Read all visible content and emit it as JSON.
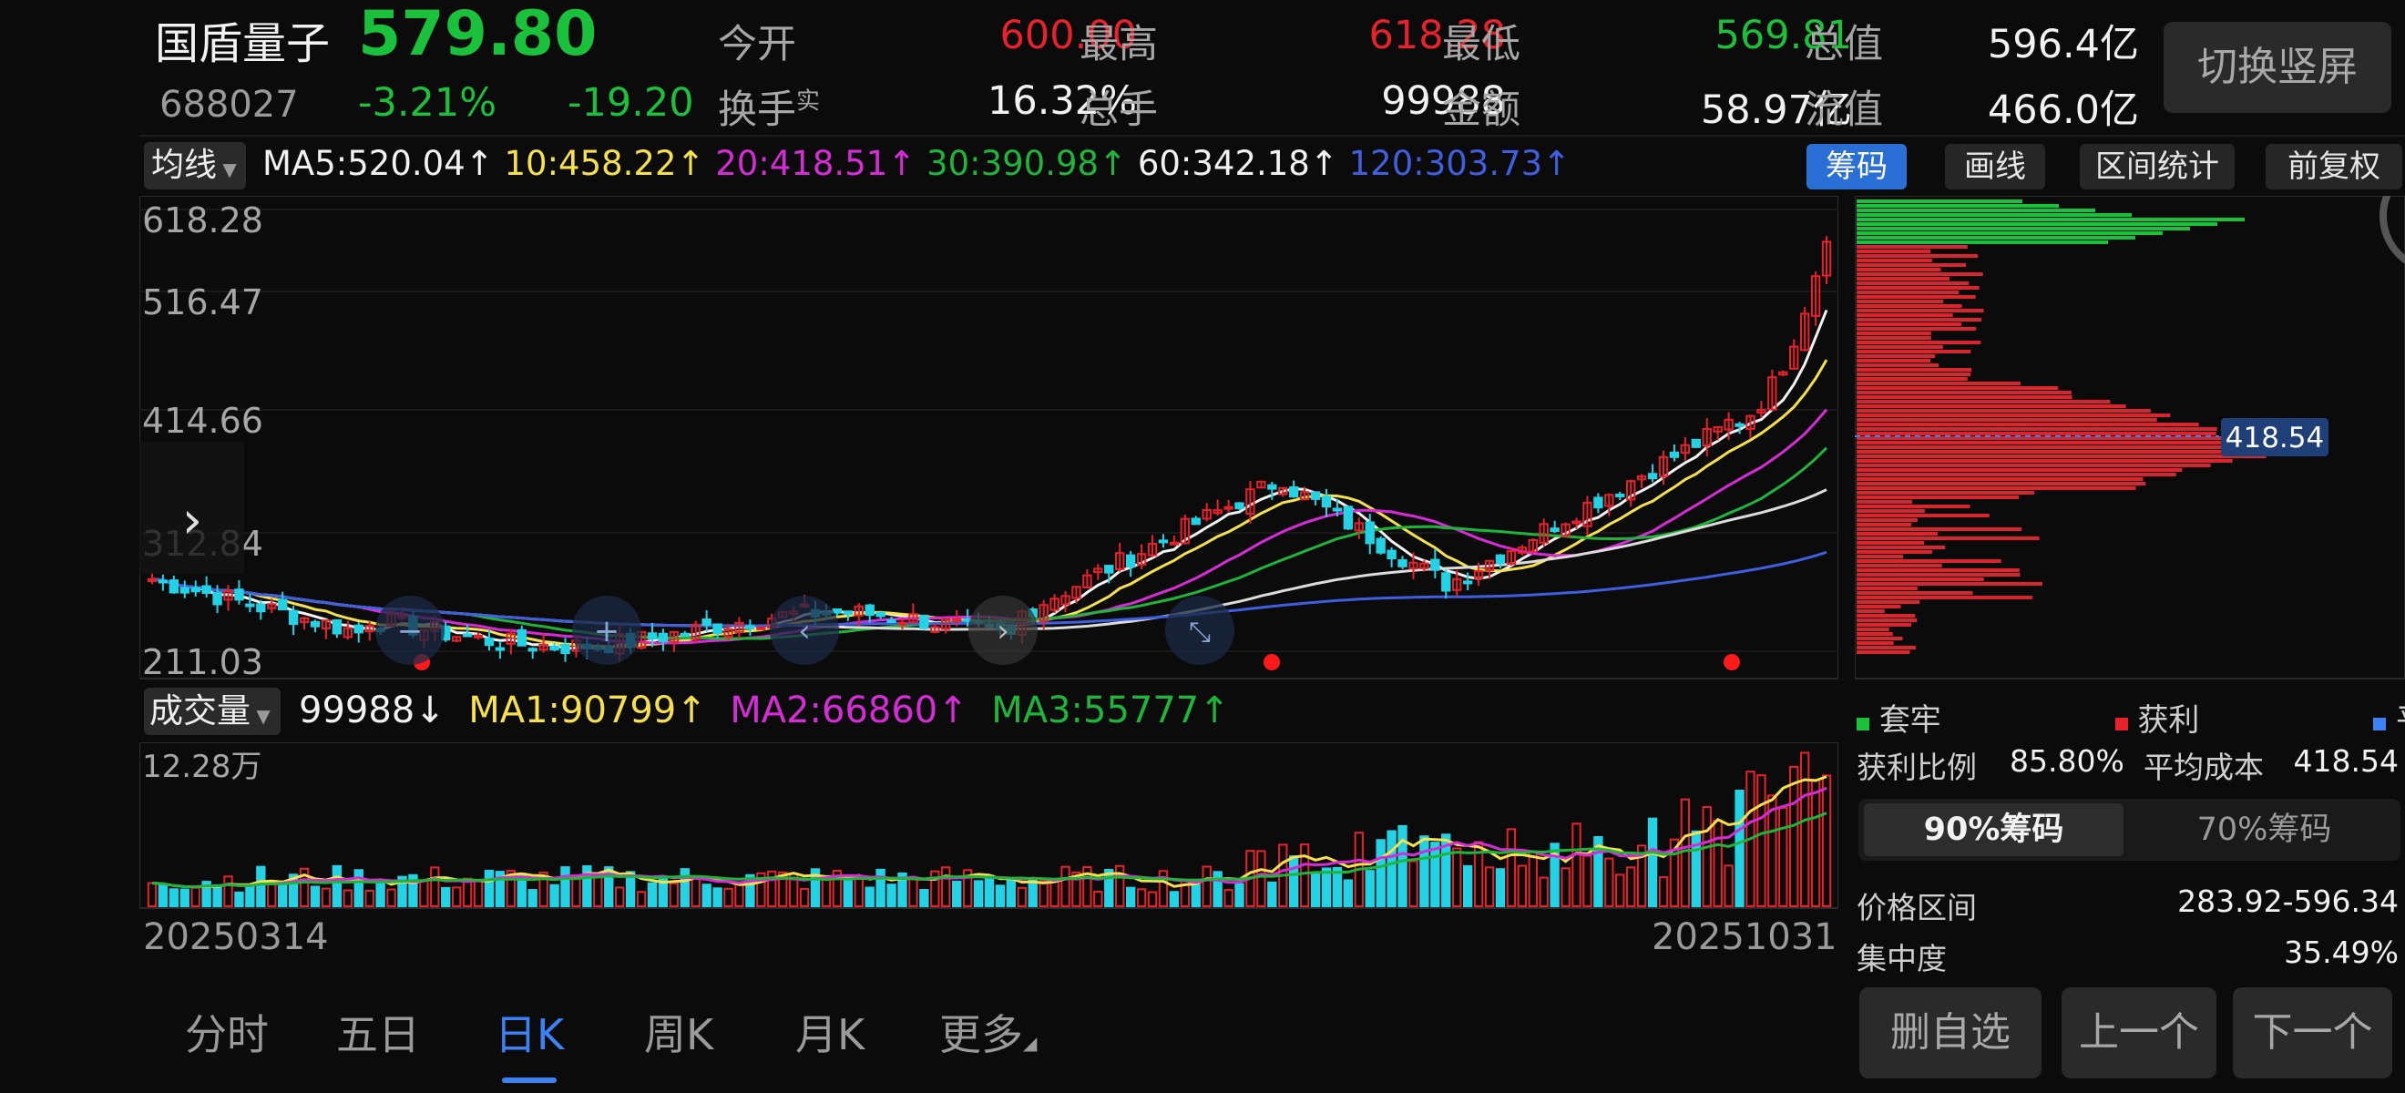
{
  "header": {
    "name": "国盾量子",
    "price": "579.80",
    "code": "688027",
    "change_pct": "-3.21%",
    "change_amt": "-19.20",
    "stats": [
      {
        "label": "今开",
        "value": "600.00",
        "color": "red"
      },
      {
        "label": "最高",
        "value": "618.28",
        "color": "red"
      },
      {
        "label": "最低",
        "value": "569.81",
        "color": "green"
      },
      {
        "label": "总值",
        "value": "596.4亿",
        "color": "white"
      },
      {
        "label": "换手",
        "sup": "实",
        "value": "16.32%",
        "color": "white"
      },
      {
        "label": "总手",
        "value": "99988",
        "color": "white"
      },
      {
        "label": "金额",
        "value": "58.97亿",
        "color": "white"
      },
      {
        "label": "流值",
        "value": "466.0亿",
        "color": "white"
      }
    ],
    "switch_button": "切换竖屏"
  },
  "ma_bar": {
    "selector": "均线",
    "items": [
      {
        "text": "MA5:520.04↑",
        "color": "#f2f2f2"
      },
      {
        "text": "10:458.22↑",
        "color": "#f7e14a"
      },
      {
        "text": "20:418.51↑",
        "color": "#d62bd6"
      },
      {
        "text": "30:390.98↑",
        "color": "#1db53a"
      },
      {
        "text": "60:342.18↑",
        "color": "#f2f2f2"
      },
      {
        "text": "120:303.73↑",
        "color": "#3f5ee0"
      }
    ],
    "buttons": [
      "筹码",
      "画线",
      "区间统计",
      "前复权"
    ]
  },
  "price_axis": [
    "618.28",
    "516.47",
    "414.66",
    "312.84",
    "211.03"
  ],
  "volume_bar": {
    "selector": "成交量",
    "items": [
      {
        "text": "99988↓",
        "color": "#f2f2f2"
      },
      {
        "text": "MA1:90799↑",
        "color": "#f7e14a"
      },
      {
        "text": "MA2:66860↑",
        "color": "#d62bd6"
      },
      {
        "text": "MA3:55777↑",
        "color": "#1db53a"
      }
    ],
    "axis_top": "12.28万"
  },
  "dates": {
    "start": "20250314",
    "end": "20251031"
  },
  "chips": {
    "marker": "418.54",
    "legend": [
      {
        "label": "套牢",
        "color": "#19c23a"
      },
      {
        "label": "获利",
        "color": "#e8212a"
      },
      {
        "label": "平均",
        "color": "#3b82f6"
      }
    ],
    "profit_label": "获利比例",
    "profit_value": "85.80%",
    "avg_label": "平均成本",
    "avg_value": "418.54",
    "tabs": [
      "90%筹码",
      "70%筹码"
    ],
    "range_label": "价格区间",
    "range_value": "283.92-596.34",
    "conc_label": "集中度",
    "conc_value": "35.49%"
  },
  "bottom_tabs": [
    "分时",
    "五日",
    "日K",
    "周K",
    "月K",
    "更多"
  ],
  "action_buttons": [
    "删自选",
    "上一个",
    "下一个"
  ]
}
